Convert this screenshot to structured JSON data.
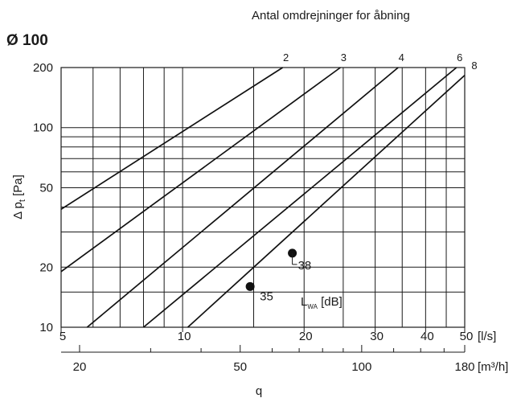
{
  "header": {
    "diameter_label": "Ø 100",
    "curves_caption": "Antal omdrejninger for åbning"
  },
  "chart_data": {
    "type": "line",
    "title": "Ø 100",
    "subtitle": "Antal omdrejninger for åbning",
    "xscale": "log",
    "yscale": "log",
    "xlim": [
      5,
      50
    ],
    "ylim": [
      10,
      200
    ],
    "xlabel": "q",
    "x_unit": "[l/s]",
    "x2_unit": "[m³/h]",
    "ylabel_parts": {
      "delta": "Δ p",
      "subscript": "t",
      "unit": " [Pa]"
    },
    "x_ticks": [
      5,
      10,
      20,
      30,
      40,
      50
    ],
    "x_tick_labels": [
      "5",
      "10",
      "20",
      "30",
      "40",
      "50"
    ],
    "x2_ticks": [
      20,
      50,
      100,
      180
    ],
    "x2_tick_labels": [
      "20",
      "50",
      "100",
      "180"
    ],
    "y_ticks": [
      10,
      20,
      50,
      100,
      200
    ],
    "y_tick_labels": [
      "10",
      "20",
      "50",
      "100",
      "200"
    ],
    "grid": true,
    "series": [
      {
        "name": "2",
        "x": [
          5,
          17.7
        ],
        "y": [
          39,
          200
        ]
      },
      {
        "name": "3",
        "x": [
          5,
          24.6
        ],
        "y": [
          19,
          200
        ]
      },
      {
        "name": "4",
        "x": [
          5.8,
          34.2
        ],
        "y": [
          10,
          200
        ]
      },
      {
        "name": "6",
        "x": [
          8,
          47.7
        ],
        "y": [
          10,
          200
        ]
      },
      {
        "name": "8",
        "x": [
          10.3,
          50
        ],
        "y": [
          10,
          183
        ]
      }
    ],
    "noise_points": [
      {
        "label": "35",
        "x": 14.7,
        "y": 16
      },
      {
        "label": "38",
        "x": 18.7,
        "y": 23.5
      }
    ],
    "noise_legend": {
      "symbol": "L",
      "subscript": "WA",
      "unit": " [dB]"
    }
  }
}
